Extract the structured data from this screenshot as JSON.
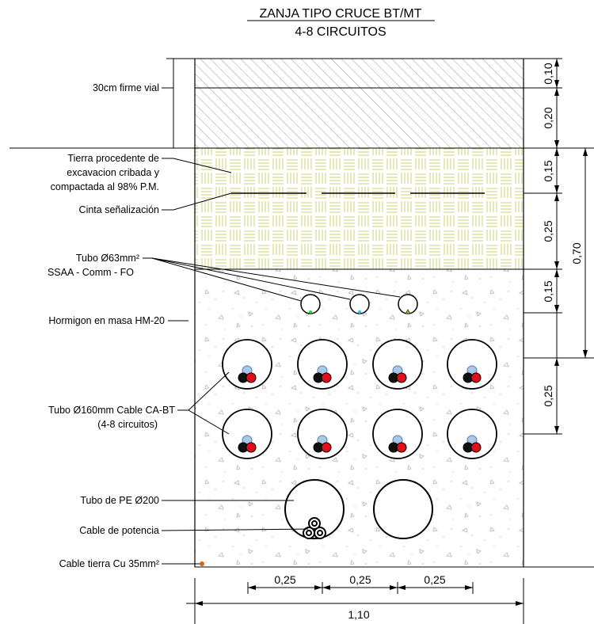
{
  "title": {
    "line1": "ZANJA TIPO CRUCE BT/MT",
    "line2": "4-8 CIRCUITOS"
  },
  "labels": {
    "firme": "30cm firme vial",
    "tierra_1": "Tierra procedente de",
    "tierra_2": "excavacion cribada y",
    "tierra_3": "compactada al 98% P.M.",
    "cinta": "Cinta señalización",
    "tubo63_1": "Tubo Ø63mm²",
    "tubo63_2": "SSAA - Comm - FO",
    "hormigon": "Hormigon en masa HM-20",
    "tubo160_1": "Tubo Ø160mm Cable CA-BT",
    "tubo160_2": "(4-8 circuitos)",
    "tubo_pe": "Tubo de PE Ø200",
    "cable_potencia": "Cable de potencia",
    "cable_tierra": "Cable tierra Cu 35mm²"
  },
  "dimensions": {
    "right_inner": [
      "0,10",
      "0,20",
      "0,15",
      "0,25",
      "0,15",
      "0,25"
    ],
    "right_outer": "0,70",
    "bottom_spacing": [
      "0,25",
      "0,25",
      "0,25"
    ],
    "bottom_total": "1,10"
  },
  "colors": {
    "line": "#000000",
    "sand_hatch": "#d7d98a",
    "asphalt_hatch": "#9a9a9a",
    "concrete_speckle": "#b5b5b5",
    "conductor_black": "#111111",
    "conductor_red": "#e0101a",
    "conductor_blue": "#a9c7e6",
    "fo_green": "#2dd12d",
    "fo_cyan": "#20c8e6",
    "earth_cable": "#c8691b"
  }
}
